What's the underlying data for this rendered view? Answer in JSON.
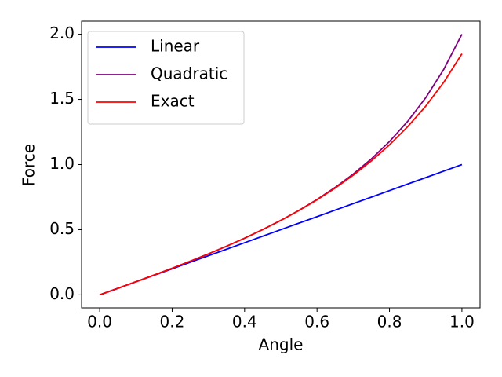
{
  "chart_data": {
    "type": "line",
    "xlabel": "Angle",
    "ylabel": "Force",
    "x": [
      0,
      0.05,
      0.1,
      0.15,
      0.2,
      0.25,
      0.3,
      0.35,
      0.4,
      0.45,
      0.5,
      0.55,
      0.6,
      0.65,
      0.7,
      0.75,
      0.8,
      0.85,
      0.9,
      0.95,
      1.0
    ],
    "series": [
      {
        "name": "Linear",
        "color": "#0000ff",
        "values": [
          0,
          0.05,
          0.1,
          0.15,
          0.2,
          0.25,
          0.3,
          0.35,
          0.4,
          0.45,
          0.5,
          0.55,
          0.6,
          0.65,
          0.7,
          0.75,
          0.8,
          0.85,
          0.9,
          0.95,
          1.0
        ]
      },
      {
        "name": "Quadratic",
        "color": "#800080",
        "values": [
          0,
          0.0501,
          0.1005,
          0.1517,
          0.2041,
          0.2581,
          0.3141,
          0.3728,
          0.4348,
          0.5007,
          0.5714,
          0.648,
          0.7317,
          0.8241,
          0.9272,
          1.0435,
          1.1765,
          1.3307,
          1.5126,
          1.7312,
          2.0
        ]
      },
      {
        "name": "Exact",
        "color": "#ff0000",
        "values": [
          0,
          0.0501,
          0.1005,
          0.1517,
          0.2041,
          0.2581,
          0.3141,
          0.3728,
          0.4347,
          0.5005,
          0.5708,
          0.647,
          0.7292,
          0.8191,
          0.9186,
          1.0285,
          1.151,
          1.29,
          1.448,
          1.632,
          1.85
        ]
      }
    ],
    "xlim": [
      -0.05,
      1.05
    ],
    "ylim": [
      -0.1,
      2.1
    ],
    "xticks": [
      {
        "value": 0,
        "label": "0.0"
      },
      {
        "value": 0.2,
        "label": "0.2"
      },
      {
        "value": 0.4,
        "label": "0.4"
      },
      {
        "value": 0.6,
        "label": "0.6"
      },
      {
        "value": 0.8,
        "label": "0.8"
      },
      {
        "value": 1.0,
        "label": "1.0"
      }
    ],
    "yticks": [
      {
        "value": 0,
        "label": "0.0"
      },
      {
        "value": 0.5,
        "label": "0.5"
      },
      {
        "value": 1.0,
        "label": "1.0"
      },
      {
        "value": 1.5,
        "label": "1.5"
      },
      {
        "value": 2.0,
        "label": "2.0"
      }
    ],
    "grid": false,
    "legend": "upper-left"
  }
}
